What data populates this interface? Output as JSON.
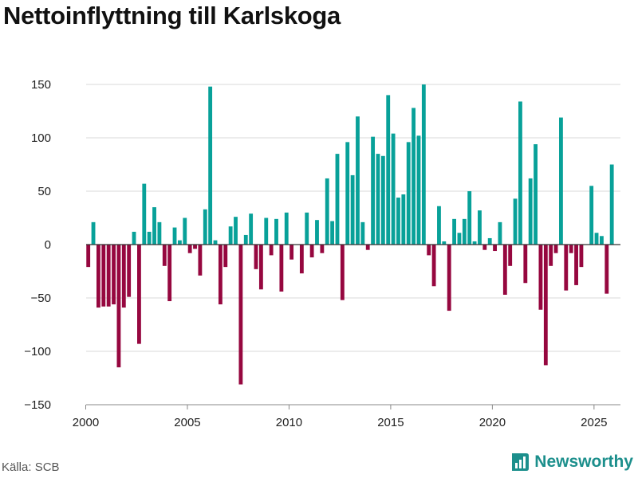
{
  "title": "Nettoinflyttning till Karlskoga",
  "source": "Källa: SCB",
  "brand": {
    "name": "Newsworthy",
    "icon": "bar-chart-icon"
  },
  "colors": {
    "positive": "#08a199",
    "negative": "#96073f",
    "grid": "#d9d9d9",
    "zero_line": "#333333",
    "brand": "#1c8f8c"
  },
  "chart_data": {
    "type": "bar",
    "title": "Nettoinflyttning till Karlskoga",
    "xlabel": "",
    "ylabel": "",
    "frequency": "quarterly",
    "start": "2000-Q1",
    "xlim": [
      1999.0,
      2026.3
    ],
    "ylim": [
      -150,
      150
    ],
    "yticks": [
      -150,
      -100,
      -50,
      0,
      50,
      100,
      150
    ],
    "ytick_labels": [
      "−150",
      "−100",
      "−50",
      "0",
      "50",
      "100",
      "150"
    ],
    "xticks": [
      2000,
      2005,
      2010,
      2015,
      2020,
      2025
    ],
    "xtick_labels": [
      "2000",
      "2005",
      "2010",
      "2015",
      "2020",
      "2025"
    ],
    "grid": true,
    "values": [
      -21,
      21,
      -59,
      -58,
      -58,
      -56,
      -115,
      -59,
      -49,
      12,
      -93,
      57,
      12,
      35,
      21,
      -20,
      -53,
      16,
      4,
      25,
      -8,
      -4,
      -29,
      33,
      148,
      4,
      -56,
      -21,
      17,
      26,
      -131,
      9,
      29,
      -23,
      -42,
      25,
      -10,
      24,
      -44,
      30,
      -14,
      0,
      -27,
      30,
      -12,
      23,
      -8,
      62,
      22,
      85,
      -52,
      96,
      65,
      120,
      21,
      -5,
      101,
      85,
      83,
      140,
      104,
      44,
      47,
      96,
      128,
      102,
      150,
      -10,
      -39,
      36,
      3,
      -62,
      24,
      11,
      24,
      50,
      3,
      32,
      -5,
      6,
      -6,
      21,
      -47,
      -20,
      43,
      134,
      -36,
      62,
      94,
      -61,
      -113,
      -20,
      -8,
      119,
      -43,
      -8,
      -38,
      -21,
      0,
      55,
      11,
      8,
      -46,
      75
    ]
  }
}
